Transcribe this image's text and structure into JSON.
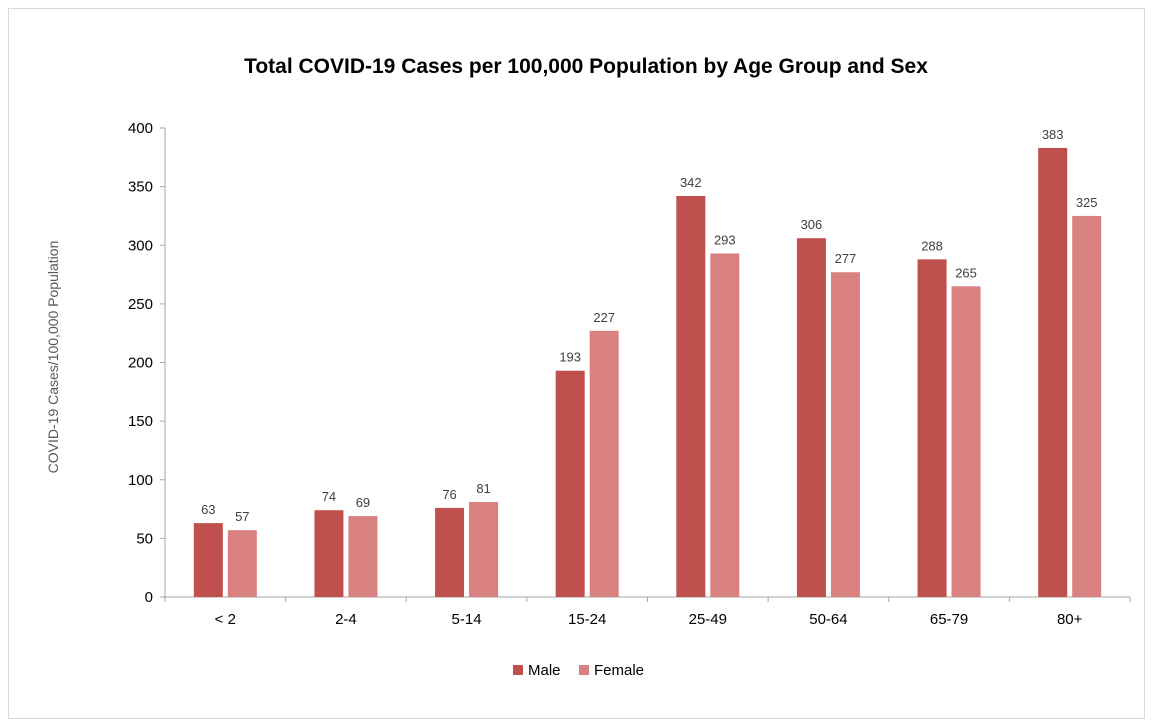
{
  "chart_data": {
    "type": "bar",
    "title": "Total COVID-19 Cases per 100,000 Population by Age Group and Sex",
    "xlabel": "",
    "ylabel": "COVID-19 Cases/100,000 Population",
    "ylim": [
      0,
      400
    ],
    "yticks": [
      "0",
      "50",
      "100",
      "150",
      "200",
      "250",
      "300",
      "350",
      "400"
    ],
    "categories": [
      "< 2",
      "2-4",
      "5-14",
      "15-24",
      "25-49",
      "50-64",
      "65-79",
      "80+"
    ],
    "series": [
      {
        "name": "Male",
        "color": "#c0504d",
        "values": [
          63,
          74,
          76,
          193,
          342,
          306,
          288,
          383
        ]
      },
      {
        "name": "Female",
        "color": "#d98080",
        "values": [
          57,
          69,
          81,
          227,
          293,
          277,
          265,
          325
        ]
      }
    ],
    "legend": "bottom",
    "grid": false
  }
}
